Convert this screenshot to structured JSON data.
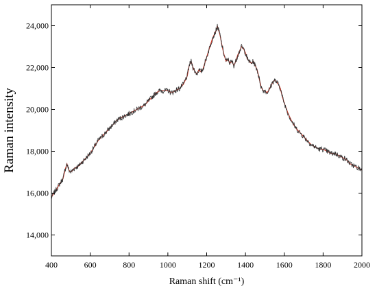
{
  "chart_data": {
    "type": "line",
    "title": "",
    "xlabel": "Raman shift (cm⁻¹)",
    "ylabel": "Raman intensity",
    "xlim": [
      400,
      2000
    ],
    "ylim": [
      13000,
      25000
    ],
    "x_ticks": [
      400,
      600,
      800,
      1000,
      1200,
      1400,
      1600,
      1800,
      2000
    ],
    "x_tick_labels": [
      "400",
      "600",
      "800",
      "1000",
      "1200",
      "1400",
      "1600",
      "1800",
      "2000"
    ],
    "y_ticks": [
      14000,
      16000,
      18000,
      20000,
      22000,
      24000
    ],
    "y_tick_labels": [
      "14,000",
      "16,000",
      "18,000",
      "20,000",
      "22,000",
      "24,000"
    ],
    "grid": false,
    "legend": "none",
    "series": [
      {
        "color": "#333333",
        "x": [
          400,
          420,
          440,
          460,
          470,
          480,
          490,
          500,
          520,
          540,
          560,
          580,
          600,
          620,
          640,
          660,
          680,
          700,
          720,
          740,
          760,
          780,
          800,
          820,
          840,
          860,
          880,
          900,
          920,
          940,
          960,
          980,
          1000,
          1020,
          1040,
          1060,
          1080,
          1100,
          1110,
          1120,
          1130,
          1140,
          1150,
          1160,
          1170,
          1180,
          1190,
          1200,
          1210,
          1220,
          1230,
          1240,
          1250,
          1255,
          1260,
          1265,
          1270,
          1280,
          1290,
          1300,
          1310,
          1320,
          1330,
          1340,
          1350,
          1360,
          1370,
          1380,
          1390,
          1400,
          1410,
          1420,
          1430,
          1440,
          1450,
          1460,
          1470,
          1480,
          1490,
          1500,
          1510,
          1520,
          1530,
          1540,
          1550,
          1560,
          1570,
          1580,
          1590,
          1600,
          1620,
          1640,
          1660,
          1680,
          1700,
          1720,
          1740,
          1760,
          1780,
          1800,
          1820,
          1840,
          1860,
          1880,
          1900,
          1920,
          1940,
          1960,
          1980,
          2000
        ],
        "values": [
          15800,
          16100,
          16400,
          16700,
          17100,
          17400,
          17100,
          17000,
          17200,
          17300,
          17500,
          17700,
          17900,
          18200,
          18500,
          18700,
          18900,
          19100,
          19300,
          19500,
          19600,
          19700,
          19800,
          19900,
          20000,
          20100,
          20200,
          20400,
          20600,
          20800,
          20900,
          20900,
          20900,
          20800,
          20900,
          21000,
          21200,
          21600,
          22100,
          22300,
          22000,
          21800,
          21700,
          21900,
          21800,
          21900,
          22200,
          22500,
          22800,
          23100,
          23400,
          23600,
          23800,
          24000,
          23800,
          23700,
          23500,
          23000,
          22600,
          22300,
          22400,
          22200,
          22300,
          22100,
          22300,
          22600,
          22800,
          23000,
          22900,
          22700,
          22400,
          22300,
          22200,
          22300,
          22100,
          21900,
          21500,
          21100,
          20900,
          20900,
          20800,
          20900,
          21100,
          21300,
          21400,
          21300,
          21200,
          21000,
          20600,
          20300,
          19800,
          19400,
          19100,
          18900,
          18700,
          18500,
          18300,
          18200,
          18100,
          18100,
          18000,
          17900,
          17900,
          17800,
          17700,
          17600,
          17400,
          17300,
          17200,
          17100
        ]
      }
    ]
  }
}
